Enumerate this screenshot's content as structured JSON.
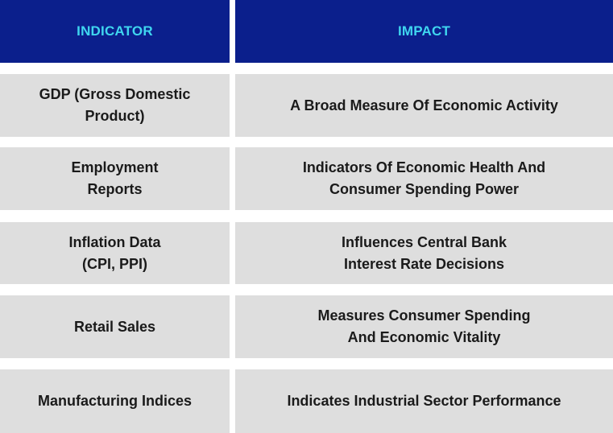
{
  "header": {
    "indicator_label": "INDICATOR",
    "impact_label": "IMPACT"
  },
  "rows": [
    {
      "indicator": "GDP (Gross Domestic\nProduct)",
      "impact": "A Broad Measure Of Economic Activity"
    },
    {
      "indicator": "Employment\nReports",
      "impact": "Indicators Of Economic Health And\nConsumer Spending Power"
    },
    {
      "indicator": "Inflation Data\n(CPI, PPI)",
      "impact": "Influences Central Bank\nInterest Rate Decisions"
    },
    {
      "indicator": "Retail Sales",
      "impact": "Measures Consumer Spending\nAnd Economic Vitality"
    },
    {
      "indicator": "Manufacturing Indices",
      "impact": "Indicates Industrial Sector Performance"
    }
  ],
  "colors": {
    "header_bg": "#0b1f8c",
    "header_text": "#3fd6ef",
    "row_bg": "#dedede",
    "row_text": "#1a1a1a"
  }
}
